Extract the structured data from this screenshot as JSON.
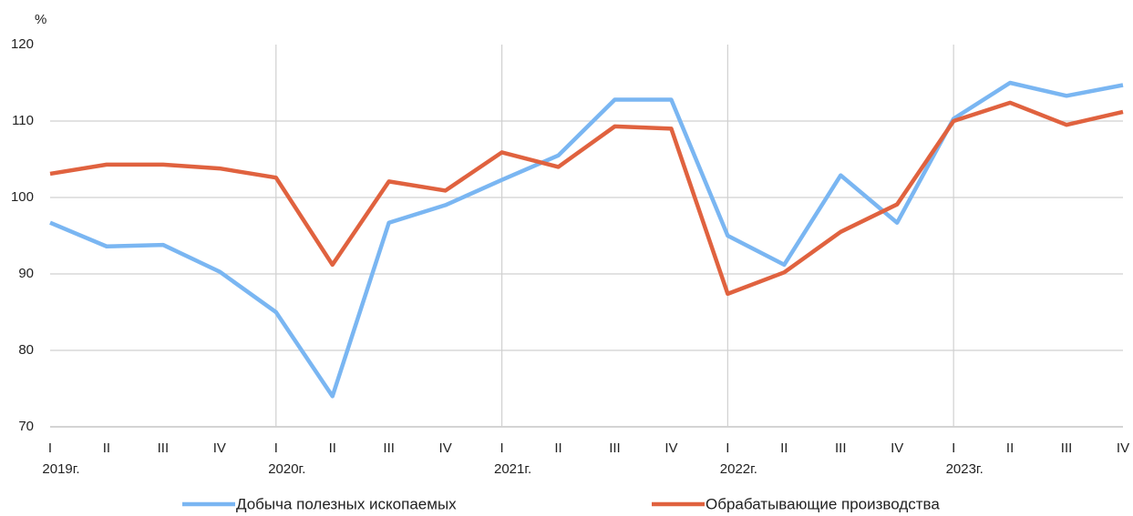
{
  "chart_data": {
    "type": "line",
    "ylabel": "%",
    "categories": [
      "I",
      "II",
      "III",
      "IV",
      "I",
      "II",
      "III",
      "IV",
      "I",
      "II",
      "III",
      "IV",
      "I",
      "II",
      "III",
      "IV",
      "I",
      "II",
      "III",
      "IV"
    ],
    "years": [
      "2019г.",
      null,
      null,
      null,
      "2020г.",
      null,
      null,
      null,
      "2021г.",
      null,
      null,
      null,
      "2022г.",
      null,
      null,
      null,
      "2023г.",
      null,
      null,
      null
    ],
    "series": [
      {
        "name": "Добыча полезных ископаемых",
        "color": "#7ab6f2",
        "values": [
          96.7,
          93.6,
          93.8,
          90.3,
          85.0,
          74.0,
          96.7,
          99.0,
          102.3,
          105.5,
          112.8,
          112.8,
          95.0,
          91.2,
          102.9,
          96.7,
          110.3,
          115.0,
          113.3,
          114.7
        ]
      },
      {
        "name": "Обрабатывающие производства",
        "color": "#e0623f",
        "values": [
          103.1,
          104.3,
          104.3,
          103.8,
          102.6,
          91.2,
          102.1,
          100.9,
          105.9,
          104.0,
          109.3,
          109.0,
          87.4,
          90.2,
          95.5,
          99.1,
          110.0,
          112.4,
          109.5,
          111.2
        ]
      }
    ],
    "ylim": [
      70,
      120
    ],
    "yticks": [
      70,
      80,
      90,
      100,
      110,
      120
    ],
    "grid": true
  }
}
